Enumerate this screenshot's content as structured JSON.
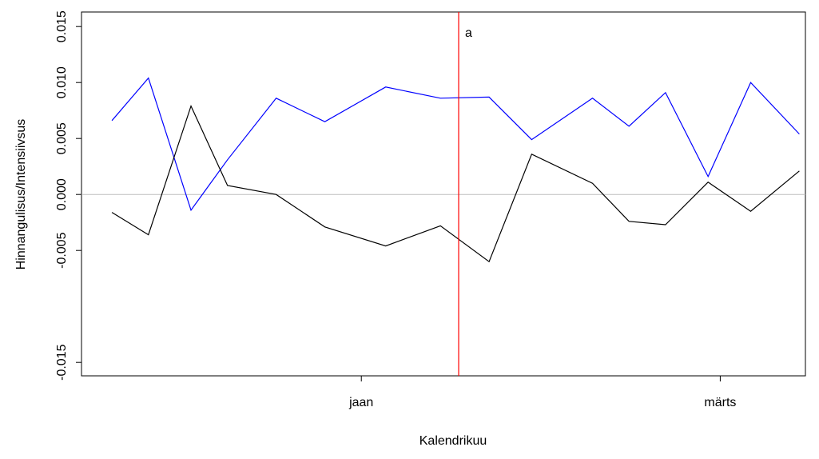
{
  "chart_data": {
    "type": "line",
    "x_label": "Kalendrikuu",
    "y_label": "Hinnangulisus/Intensiivsus",
    "x": [
      -41,
      -35,
      -28,
      -22,
      -14,
      -6,
      4,
      13,
      21,
      28,
      38,
      44,
      50,
      57,
      64,
      72
    ],
    "series": [
      {
        "color": "#0000ff",
        "values": [
          0.0066,
          0.0104,
          -0.0014,
          0.0031,
          0.0086,
          0.0065,
          0.0096,
          0.0086,
          0.0087,
          0.0049,
          0.0086,
          0.0061,
          0.0091,
          0.0016,
          0.01,
          0.0054
        ]
      },
      {
        "color": "#000000",
        "values": [
          -0.0016,
          -0.0036,
          0.0079,
          0.0008,
          0.0,
          -0.0029,
          -0.0046,
          -0.0028,
          -0.006,
          0.0036,
          0.001,
          -0.0024,
          -0.0027,
          0.0011,
          -0.0015,
          0.0021
        ]
      }
    ],
    "xlim": [
      -46,
      73
    ],
    "xticks": [
      {
        "value": 0,
        "label": "jaan"
      },
      {
        "value": 59,
        "label": "märts"
      }
    ],
    "ylim": [
      -0.0162,
      0.0163
    ],
    "yticks": [
      {
        "value": -0.015,
        "label": "-0.015"
      },
      -0.005,
      {
        "value": 0,
        "label": "0.000"
      },
      0.005,
      {
        "value": 0.01,
        "label": "0.010"
      },
      0.015
    ],
    "hline": 0,
    "hline_color": "#bebebe",
    "vline": 16,
    "vline_color": "#ff0000",
    "annotation": "a"
  }
}
